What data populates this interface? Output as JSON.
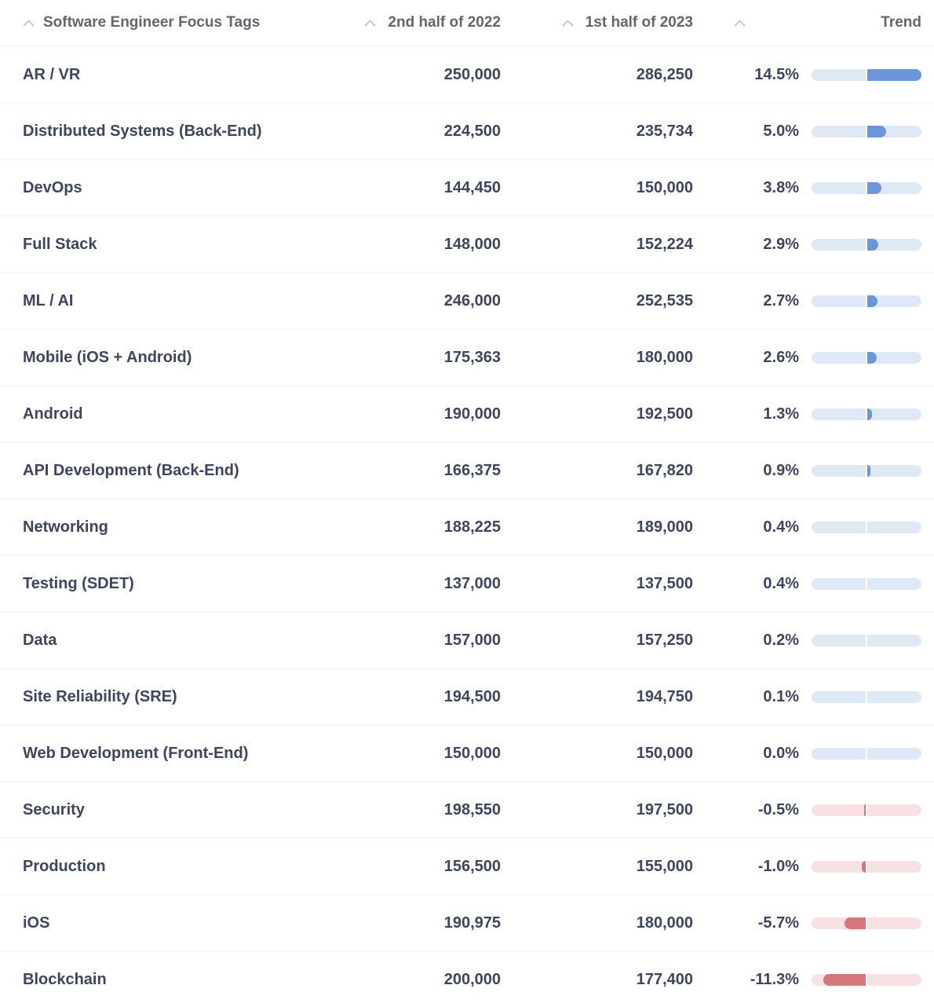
{
  "table": {
    "columns": [
      {
        "id": "tag",
        "label": "Software Engineer Focus Tags",
        "sortable": true
      },
      {
        "id": "h2_2022",
        "label": "2nd half of 2022",
        "sortable": true
      },
      {
        "id": "h1_2023",
        "label": "1st half of 2023",
        "sortable": true
      },
      {
        "id": "pct_change",
        "label": "",
        "sortable": true
      },
      {
        "id": "trend",
        "label": "Trend",
        "sortable": false
      }
    ],
    "rows": [
      {
        "tag": "AR / VR",
        "h2_2022": "250,000",
        "h1_2023": "286,250",
        "pct_change": "14.5%",
        "pct_value": 14.5
      },
      {
        "tag": "Distributed Systems (Back-End)",
        "h2_2022": "224,500",
        "h1_2023": "235,734",
        "pct_change": "5.0%",
        "pct_value": 5.0
      },
      {
        "tag": "DevOps",
        "h2_2022": "144,450",
        "h1_2023": "150,000",
        "pct_change": "3.8%",
        "pct_value": 3.8
      },
      {
        "tag": "Full Stack",
        "h2_2022": "148,000",
        "h1_2023": "152,224",
        "pct_change": "2.9%",
        "pct_value": 2.9
      },
      {
        "tag": "ML / AI",
        "h2_2022": "246,000",
        "h1_2023": "252,535",
        "pct_change": "2.7%",
        "pct_value": 2.7
      },
      {
        "tag": "Mobile (iOS + Android)",
        "h2_2022": "175,363",
        "h1_2023": "180,000",
        "pct_change": "2.6%",
        "pct_value": 2.6
      },
      {
        "tag": "Android",
        "h2_2022": "190,000",
        "h1_2023": "192,500",
        "pct_change": "1.3%",
        "pct_value": 1.3
      },
      {
        "tag": "API Development (Back-End)",
        "h2_2022": "166,375",
        "h1_2023": "167,820",
        "pct_change": "0.9%",
        "pct_value": 0.9
      },
      {
        "tag": "Networking",
        "h2_2022": "188,225",
        "h1_2023": "189,000",
        "pct_change": "0.4%",
        "pct_value": 0.4
      },
      {
        "tag": "Testing (SDET)",
        "h2_2022": "137,000",
        "h1_2023": "137,500",
        "pct_change": "0.4%",
        "pct_value": 0.4
      },
      {
        "tag": "Data",
        "h2_2022": "157,000",
        "h1_2023": "157,250",
        "pct_change": "0.2%",
        "pct_value": 0.2
      },
      {
        "tag": "Site Reliability (SRE)",
        "h2_2022": "194,500",
        "h1_2023": "194,750",
        "pct_change": "0.1%",
        "pct_value": 0.1
      },
      {
        "tag": "Web Development (Front-End)",
        "h2_2022": "150,000",
        "h1_2023": "150,000",
        "pct_change": "0.0%",
        "pct_value": 0.0
      },
      {
        "tag": "Security",
        "h2_2022": "198,550",
        "h1_2023": "197,500",
        "pct_change": "-0.5%",
        "pct_value": -0.5
      },
      {
        "tag": "Production",
        "h2_2022": "156,500",
        "h1_2023": "155,000",
        "pct_change": "-1.0%",
        "pct_value": -1.0
      },
      {
        "tag": "iOS",
        "h2_2022": "190,975",
        "h1_2023": "180,000",
        "pct_change": "-5.7%",
        "pct_value": -5.7
      },
      {
        "tag": "Blockchain",
        "h2_2022": "200,000",
        "h1_2023": "177,400",
        "pct_change": "-11.3%",
        "pct_value": -11.3
      }
    ]
  },
  "trend_bar": {
    "scale_max_pct": 14.5,
    "positive_fill": "#6b97d9",
    "positive_track": "#dfe8f5",
    "negative_fill": "#d7767b",
    "negative_track": "#f8e1e5"
  },
  "colors": {
    "row_text": "#3e455e",
    "header_text": "#62666f",
    "sort_caret": "#c6cad0",
    "row_separator": "#f5f6f8",
    "background": "#ffffff"
  }
}
